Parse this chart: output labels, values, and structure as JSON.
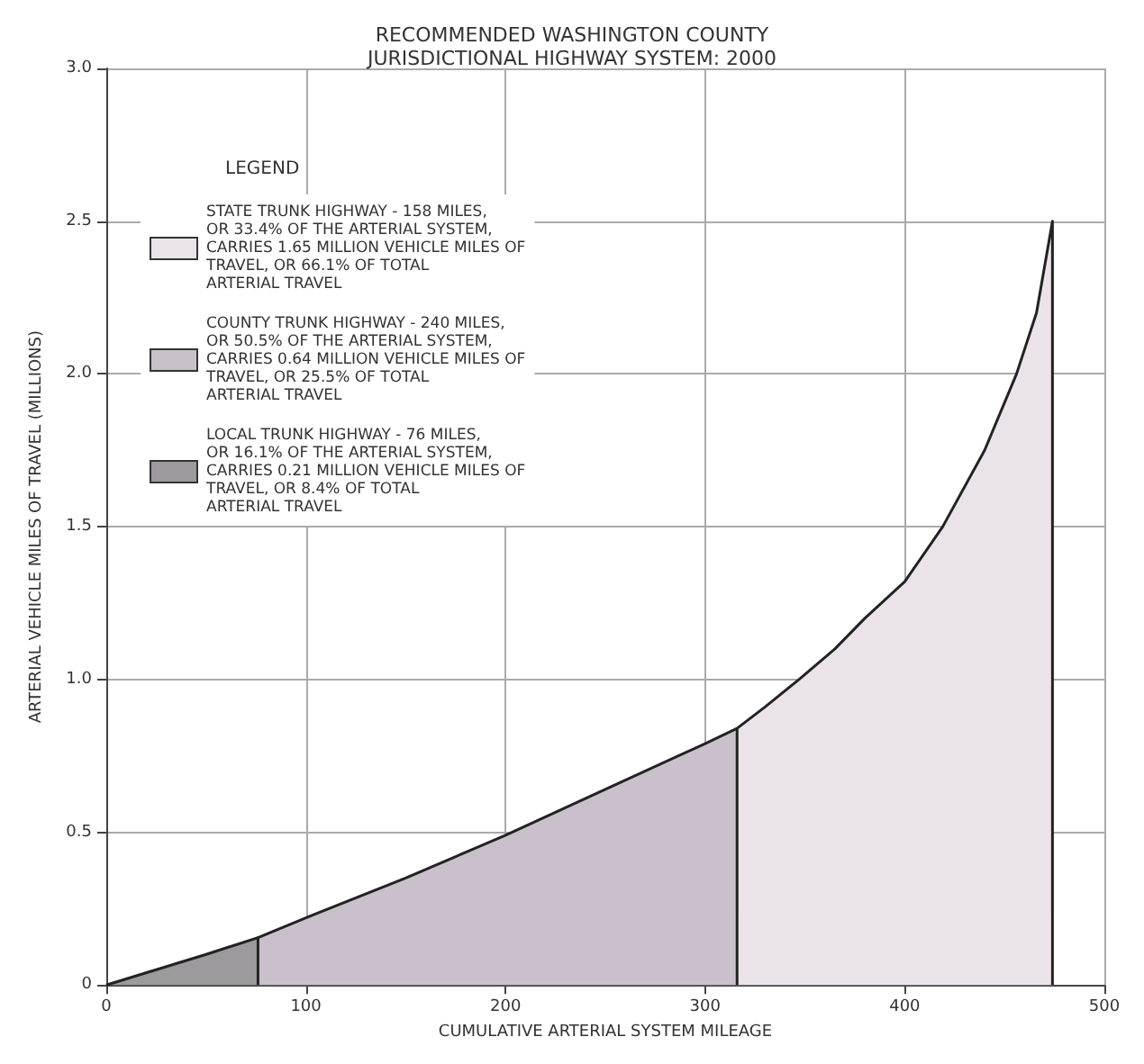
{
  "chart_data": {
    "type": "area",
    "title": "RECOMMENDED WASHINGTON COUNTY\nJURISDICTIONAL HIGHWAY SYSTEM: 2000",
    "xlabel": "CUMULATIVE ARTERIAL SYSTEM MILEAGE",
    "ylabel": "ARTERIAL VEHICLE MILES OF TRAVEL (MILLIONS)",
    "legend_title": "LEGEND",
    "series": [
      {
        "name": "STATE TRUNK HIGHWAY - 158 MILES,\nOR 33.4% OF THE ARTERIAL SYSTEM,\nCARRIES 1.65 MILLION VEHICLE MILES OF\nTRAVEL, OR 66.1% OF TOTAL\nARTERIAL TRAVEL",
        "color": "#ebe3ea",
        "x": [
          316,
          316,
          330,
          347,
          365,
          380,
          400,
          419,
          440,
          456,
          466,
          474,
          474
        ],
        "values": [
          0,
          0.84,
          0.91,
          1.0,
          1.1,
          1.2,
          1.32,
          1.5,
          1.75,
          2.0,
          2.2,
          2.5,
          0
        ]
      },
      {
        "name": "COUNTY TRUNK HIGHWAY - 240 MILES,\nOR 50.5% OF THE ARTERIAL SYSTEM,\nCARRIES 0.64 MILLION VEHICLE MILES OF\nTRAVEL, OR 25.5% OF TOTAL\nARTERIAL TRAVEL",
        "color": "#c9c0cb",
        "x": [
          76,
          76,
          100,
          150,
          200,
          250,
          300,
          316
        ],
        "values": [
          0,
          0.155,
          0.22,
          0.35,
          0.49,
          0.64,
          0.79,
          0.84
        ]
      },
      {
        "name": "LOCAL TRUNK HIGHWAY - 76 MILES,\nOR 16.1% OF THE ARTERIAL SYSTEM,\nCARRIES 0.21 MILLION VEHICLE MILES OF\nTRAVEL, OR 8.4% OF TOTAL\nARTERIAL TRAVEL",
        "color": "#9c9a9c",
        "x": [
          0,
          25,
          50,
          76
        ],
        "values": [
          0,
          0.05,
          0.1,
          0.155
        ]
      }
    ],
    "xlim": [
      0,
      500
    ],
    "xticks": [
      0,
      100,
      200,
      300,
      400,
      500
    ],
    "ylim": [
      0,
      3
    ],
    "yticks": [
      0,
      0.5,
      {
        "value": 1,
        "label": "1.0"
      },
      1.5,
      {
        "value": 2,
        "label": "2.0"
      },
      2.5,
      {
        "value": 3,
        "label": "3.0"
      }
    ],
    "grid": true,
    "legend": "top left",
    "marker": "none",
    "line_style": "solid"
  }
}
